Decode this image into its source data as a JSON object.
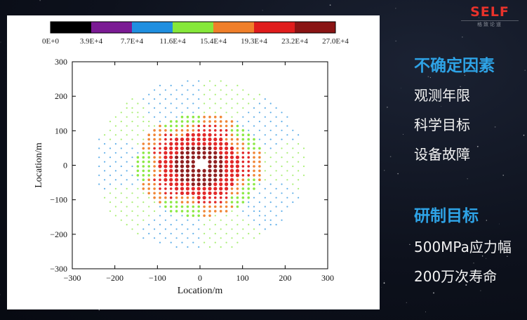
{
  "logo": {
    "main": "SELF",
    "sub": "格致论道"
  },
  "sidebar": {
    "sections": [
      {
        "title": "不确定因素",
        "items": [
          "观测年限",
          "科学目标",
          "设备故障"
        ]
      },
      {
        "title": "研制目标",
        "items": [
          "500MPa应力幅",
          "200万次寿命"
        ]
      }
    ]
  },
  "chart_data": {
    "type": "scatter",
    "xlabel": "Location/m",
    "ylabel": "Location/m",
    "xlim": [
      -300,
      300
    ],
    "ylim": [
      -300,
      300
    ],
    "xticks": [
      "−300",
      "−200",
      "−100",
      "0",
      "100",
      "200",
      "300"
    ],
    "yticks": [
      "300",
      "200",
      "100",
      "0",
      "−100",
      "−200",
      "−300"
    ],
    "colorbar": {
      "labels": [
        "0E+0",
        "3.9E+4",
        "7.7E+4",
        "11.6E+4",
        "15.4E+4",
        "19.3E+4",
        "23.2E+4",
        "27.0E+4"
      ],
      "colors": [
        "#000000",
        "#7b1a94",
        "#1f8fe0",
        "#86e83a",
        "#f07f2a",
        "#e01c1c",
        "#8a1414"
      ]
    },
    "disk_radius": 250,
    "grid": false
  }
}
